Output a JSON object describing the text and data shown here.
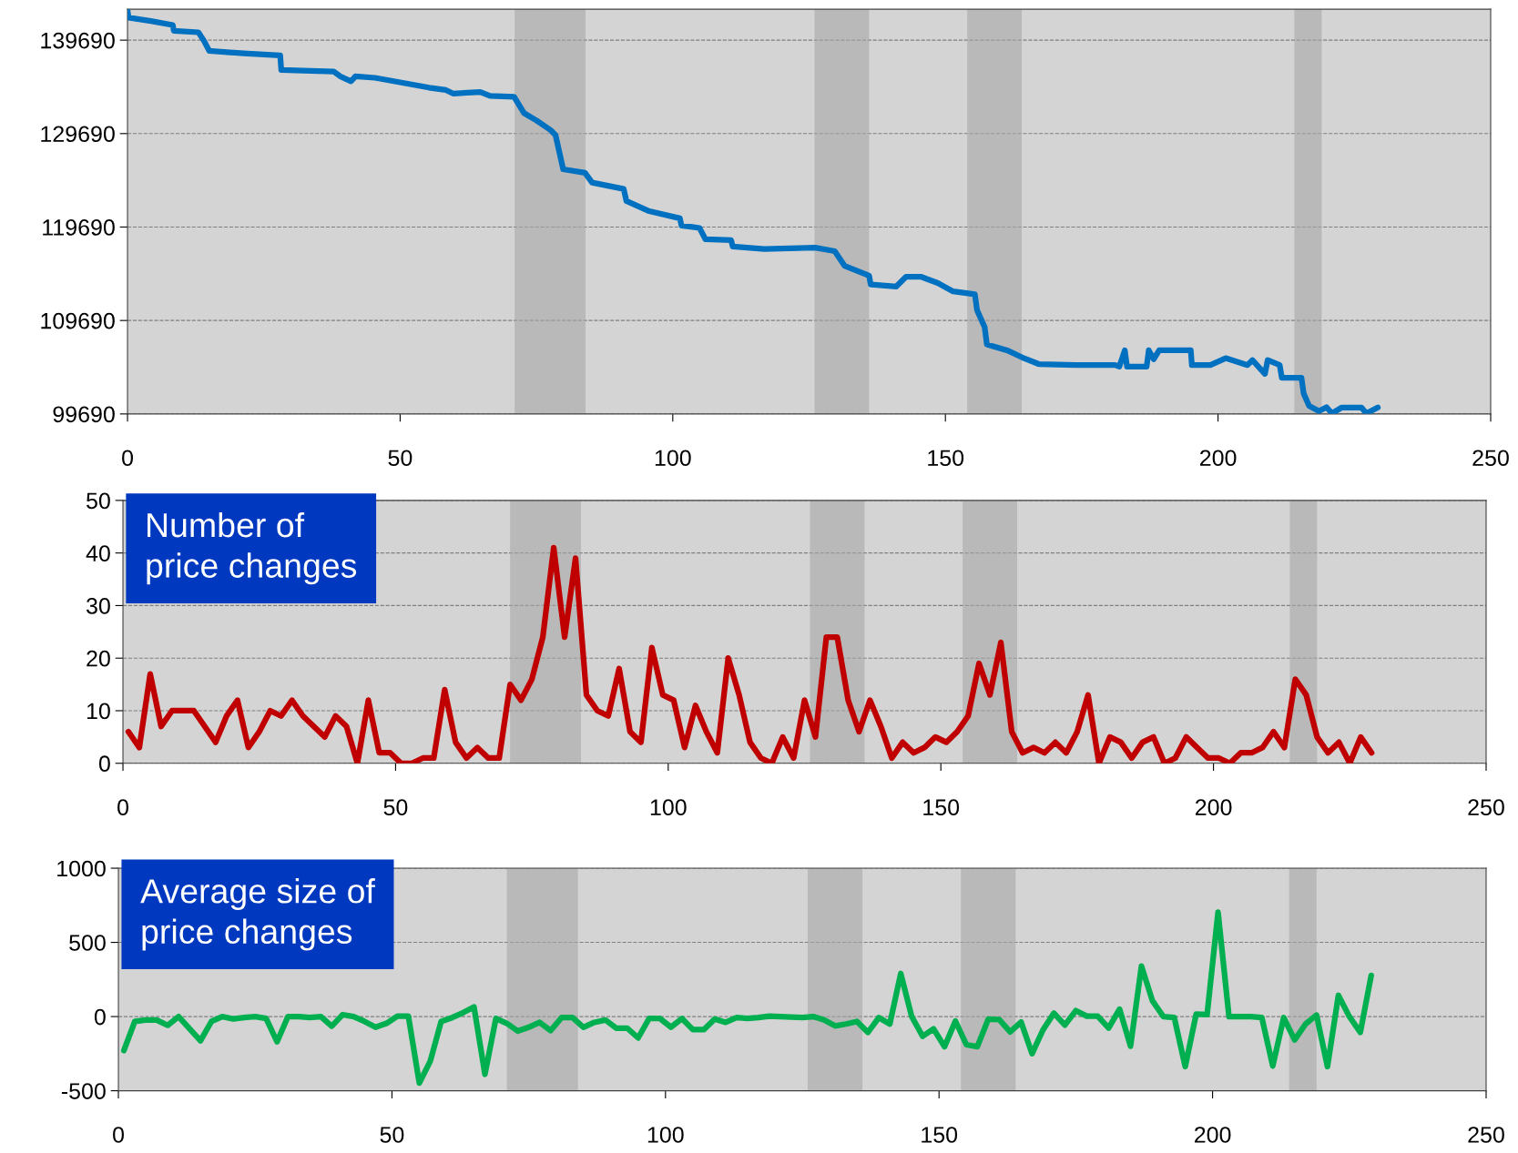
{
  "chart_data": [
    {
      "type": "line",
      "xlim": [
        0,
        250
      ],
      "xticks": [
        0,
        50,
        100,
        150,
        200,
        250
      ],
      "ylim": [
        99690,
        143000
      ],
      "yticks": [
        99690,
        109690,
        119690,
        129690,
        139690
      ],
      "grid": "y",
      "bands": [
        {
          "axis": "x",
          "from": 71,
          "to": 84,
          "color": "#a6a6a6"
        },
        {
          "axis": "x",
          "from": 126,
          "to": 136,
          "color": "#a6a6a6"
        },
        {
          "axis": "x",
          "from": 154,
          "to": 164,
          "color": "#a6a6a6"
        },
        {
          "axis": "x",
          "from": 214,
          "to": 219,
          "color": "#a6a6a6"
        }
      ],
      "series": [
        {
          "color": "#0070c0",
          "x": [
            0,
            0.2,
            4.3,
            8.3,
            8.5,
            13,
            14,
            15,
            21.3,
            28,
            28.2,
            37.8,
            39,
            41,
            41.8,
            45.4,
            55.3,
            58.4,
            59.7,
            64.7,
            66.5,
            70.9,
            72.7,
            75,
            77.6,
            78.5,
            79.9,
            83.9,
            85.2,
            91,
            91.5,
            95.5,
            101.3,
            101.6,
            104.9,
            106,
            110.7,
            111,
            116.8,
            126.1,
            129.7,
            131.5,
            136,
            136.3,
            141,
            142.8,
            145.5,
            148.6,
            151.4,
            155.4,
            155.8,
            157.2,
            157.6,
            161.3,
            164,
            167.1,
            173.9,
            181.1,
            181.9,
            182.9,
            183.3,
            186.9,
            187.3,
            188.2,
            189.2,
            195,
            195.2,
            198.6,
            201.4,
            205.4,
            206.3,
            208.6,
            209.1,
            211.3,
            211.7,
            215.3,
            215.7,
            216.7,
            218.5,
            219.9,
            220.9,
            222.7,
            226.3,
            227.2,
            229.3
          ],
          "values": [
            142880,
            142100,
            141730,
            141310,
            140680,
            140530,
            139640,
            138540,
            138280,
            138070,
            136500,
            136340,
            135820,
            135290,
            135820,
            135660,
            134610,
            134350,
            133980,
            134140,
            133720,
            133620,
            131890,
            131100,
            130060,
            129530,
            125870,
            125500,
            124450,
            123770,
            122470,
            121420,
            120630,
            119850,
            119590,
            118380,
            118280,
            117600,
            117330,
            117480,
            117110,
            115540,
            114490,
            113540,
            113330,
            114380,
            114380,
            113700,
            112810,
            112490,
            110810,
            108970,
            107130,
            106500,
            105760,
            105030,
            104920,
            104920,
            104760,
            106500,
            104760,
            104760,
            106500,
            105550,
            106500,
            106500,
            104920,
            104920,
            105660,
            104920,
            105450,
            103980,
            105450,
            104920,
            103560,
            103560,
            101880,
            100560,
            99990,
            100410,
            99750,
            100380,
            100380,
            99750,
            100380
          ]
        }
      ]
    },
    {
      "type": "line",
      "title": "Number of\nprice changes",
      "xlim": [
        0,
        250
      ],
      "xticks": [
        0,
        50,
        100,
        150,
        200,
        250
      ],
      "ylim": [
        0,
        50
      ],
      "yticks": [
        0,
        10,
        20,
        30,
        40,
        50
      ],
      "grid": "y",
      "bands": [
        {
          "axis": "x",
          "from": 71,
          "to": 84,
          "color": "#a6a6a6"
        },
        {
          "axis": "x",
          "from": 126,
          "to": 136,
          "color": "#a6a6a6"
        },
        {
          "axis": "x",
          "from": 154,
          "to": 164,
          "color": "#a6a6a6"
        },
        {
          "axis": "x",
          "from": 214,
          "to": 219,
          "color": "#a6a6a6"
        }
      ],
      "x": [
        1,
        3,
        5,
        7,
        9,
        11,
        13,
        15,
        17,
        19,
        21,
        23,
        25,
        27,
        29,
        31,
        33,
        35,
        37,
        39,
        41,
        43,
        45,
        47,
        49,
        51,
        53,
        55,
        57,
        59,
        61,
        63,
        65,
        67,
        69,
        71,
        73,
        75,
        77,
        79,
        81,
        83,
        85,
        87,
        89,
        91,
        93,
        95,
        97,
        99,
        101,
        103,
        105,
        107,
        109,
        111,
        113,
        115,
        117,
        119,
        121,
        123,
        125,
        127,
        129,
        131,
        133,
        135,
        137,
        139,
        141,
        143,
        145,
        147,
        149,
        151,
        153,
        155,
        157,
        159,
        161,
        163,
        165,
        167,
        169,
        171,
        173,
        175,
        177,
        179,
        181,
        183,
        185,
        187,
        189,
        191,
        193,
        195,
        197,
        199,
        201,
        203,
        205,
        207,
        209,
        211,
        213,
        215,
        217,
        219,
        221,
        223,
        225,
        227,
        229
      ],
      "series": [
        {
          "color": "#c00000",
          "values": [
            6,
            3,
            17,
            7,
            10,
            10,
            10,
            7,
            4,
            9,
            12,
            3,
            6,
            10,
            9,
            12,
            9,
            7,
            5,
            9,
            7,
            0,
            12,
            2,
            2,
            0,
            0,
            1,
            1,
            14,
            4,
            1,
            3,
            1,
            1,
            15,
            12,
            16,
            24,
            41,
            24,
            39,
            13,
            10,
            9,
            18,
            6,
            4,
            22,
            13,
            12,
            3,
            11,
            6,
            2,
            20,
            13,
            4,
            1,
            0,
            5,
            1,
            12,
            5,
            24,
            24,
            12,
            6,
            12,
            7,
            1,
            4,
            2,
            3,
            5,
            4,
            6,
            9,
            19,
            13,
            23,
            6,
            2,
            3,
            2,
            4,
            2,
            6,
            13,
            0,
            5,
            4,
            1,
            4,
            5,
            0,
            1,
            5,
            3,
            1,
            1,
            0,
            2,
            2,
            3,
            6,
            3,
            16,
            13,
            5,
            2,
            4,
            0,
            5,
            2
          ]
        }
      ]
    },
    {
      "type": "line",
      "title": "Average size of\nprice changes",
      "xlim": [
        0,
        250
      ],
      "xticks": [
        0,
        50,
        100,
        150,
        200,
        250
      ],
      "ylim": [
        -500,
        1000
      ],
      "yticks": [
        {
          "value": -500,
          "label": "-500"
        },
        0,
        500,
        1000
      ],
      "grid": "y",
      "bands": [
        {
          "axis": "x",
          "from": 71,
          "to": 84,
          "color": "#a6a6a6"
        },
        {
          "axis": "x",
          "from": 126,
          "to": 136,
          "color": "#a6a6a6"
        },
        {
          "axis": "x",
          "from": 154,
          "to": 164,
          "color": "#a6a6a6"
        },
        {
          "axis": "x",
          "from": 214,
          "to": 219,
          "color": "#a6a6a6"
        }
      ],
      "x": [
        1,
        3,
        5,
        7,
        9,
        11,
        13,
        15,
        17,
        19,
        21,
        23,
        25,
        27,
        29,
        31,
        33,
        35,
        37,
        39,
        41,
        43,
        45,
        47,
        49,
        51,
        53,
        55,
        57,
        59,
        61,
        63,
        65,
        67,
        69,
        71,
        73,
        75,
        77,
        79,
        81,
        83,
        85,
        87,
        89,
        91,
        93,
        95,
        97,
        99,
        101,
        103,
        105,
        107,
        109,
        111,
        113,
        115,
        117,
        119,
        121,
        123,
        125,
        127,
        129,
        131,
        133,
        135,
        137,
        139,
        141,
        143,
        145,
        147,
        149,
        151,
        153,
        155,
        157,
        159,
        161,
        163,
        165,
        167,
        169,
        171,
        173,
        175,
        177,
        179,
        181,
        183,
        185,
        187,
        189,
        191,
        193,
        195,
        197,
        199,
        201,
        203,
        205,
        207,
        209,
        211,
        213,
        215,
        217,
        219,
        221,
        223,
        225,
        227,
        229
      ],
      "series": [
        {
          "color": "#00b050",
          "values": [
            -229,
            -33,
            -23,
            -23,
            -59,
            0,
            -82,
            -163,
            -33,
            0,
            -16,
            -7,
            0,
            -13,
            -170,
            0,
            0,
            -7,
            0,
            -65,
            13,
            0,
            -33,
            -72,
            -46,
            3,
            3,
            -448,
            -301,
            -33,
            -7,
            26,
            65,
            -389,
            -13,
            -46,
            -98,
            -72,
            -39,
            -95,
            -7,
            -7,
            -72,
            -39,
            -23,
            -78,
            -78,
            -144,
            -13,
            -13,
            -72,
            -13,
            -88,
            -88,
            -16,
            -39,
            -7,
            -13,
            -7,
            3,
            0,
            -3,
            -7,
            0,
            -23,
            -63,
            -50,
            -33,
            -107,
            -7,
            -50,
            290,
            0,
            -133,
            -83,
            -203,
            -30,
            -190,
            -203,
            -17,
            -20,
            -103,
            -37,
            -250,
            -90,
            23,
            -57,
            40,
            3,
            3,
            -77,
            50,
            -200,
            340,
            107,
            0,
            -7,
            -337,
            17,
            13,
            703,
            0,
            0,
            0,
            -7,
            -333,
            -7,
            -157,
            -50,
            10,
            -337,
            143,
            0,
            -107,
            277
          ]
        }
      ]
    }
  ]
}
